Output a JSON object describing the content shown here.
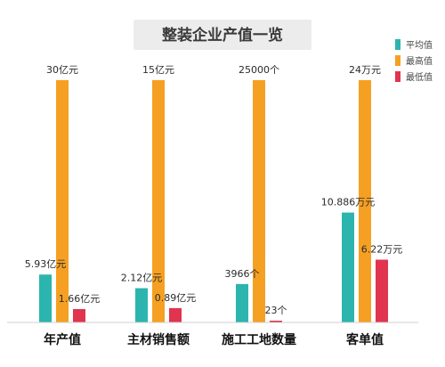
{
  "chart_data": {
    "type": "bar",
    "title": "整装企业产值一览",
    "categories": [
      "年产值",
      "主材销售额",
      "施工工地数量",
      "客单值"
    ],
    "series": [
      {
        "name": "平均值",
        "color": "#2bb5ae",
        "values": [
          5.93,
          2.12,
          3966,
          10.886
        ],
        "labels": [
          "5.93亿元",
          "2.12亿元",
          "3966个",
          "10.886万元"
        ]
      },
      {
        "name": "最高值",
        "color": "#f5a023",
        "values": [
          30,
          15,
          25000,
          24
        ],
        "labels": [
          "30亿元",
          "15亿元",
          "25000个",
          "24万元"
        ]
      },
      {
        "name": "最低值",
        "color": "#e0344f",
        "values": [
          1.66,
          0.89,
          23,
          6.22
        ],
        "labels": [
          "1.66亿元",
          "0.89亿元",
          "23个",
          "6.22万元"
        ]
      }
    ],
    "legend_position": "top-right",
    "grid": false
  }
}
